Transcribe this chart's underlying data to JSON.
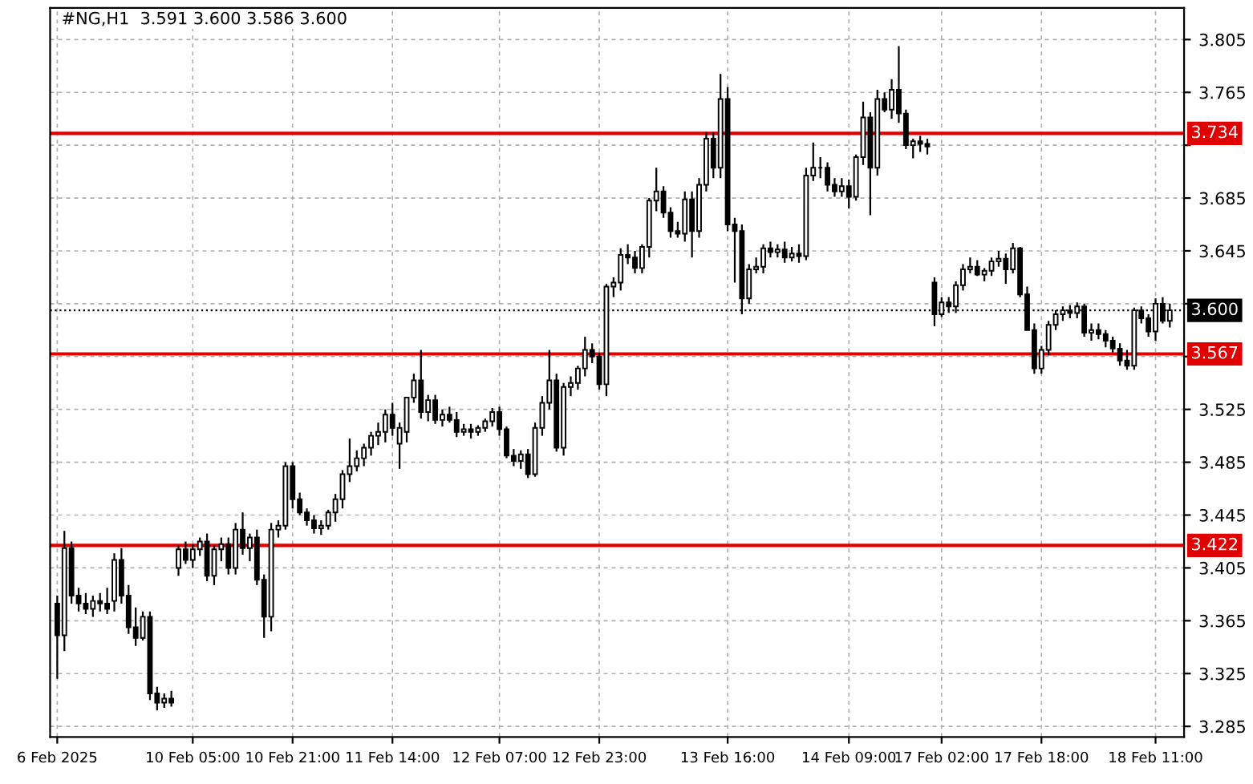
{
  "chart_data": {
    "type": "candlestick",
    "title": "#NG,H1  3.591 3.600 3.586 3.600",
    "categories": [
      "6 Feb 2025",
      null,
      null,
      null,
      null,
      null,
      null,
      null,
      null,
      null,
      null,
      null,
      null,
      null,
      null,
      null,
      null,
      null,
      null,
      "10 Feb 05:00",
      null,
      null,
      null,
      null,
      null,
      null,
      null,
      null,
      null,
      null,
      null,
      null,
      null,
      "10 Feb 21:00",
      null,
      null,
      null,
      null,
      null,
      null,
      null,
      null,
      null,
      null,
      null,
      null,
      null,
      "11 Feb 14:00",
      null,
      null,
      null,
      null,
      null,
      null,
      null,
      null,
      null,
      null,
      null,
      null,
      null,
      null,
      "12 Feb 07:00",
      null,
      null,
      null,
      null,
      null,
      null,
      null,
      null,
      null,
      null,
      null,
      null,
      null,
      "12 Feb 23:00",
      null,
      null,
      null,
      null,
      null,
      null,
      null,
      null,
      null,
      null,
      null,
      null,
      null,
      null,
      null,
      null,
      null,
      "13 Feb 16:00",
      null,
      null,
      null,
      null,
      null,
      null,
      null,
      null,
      null,
      null,
      null,
      null,
      null,
      null,
      null,
      null,
      "14 Feb 09:00",
      null,
      null,
      null,
      null,
      null,
      null,
      null,
      null,
      null,
      null,
      null,
      null,
      "17 Feb 02:00",
      null,
      null,
      null,
      null,
      null,
      null,
      null,
      null,
      null,
      null,
      null,
      null,
      null,
      "17 Feb 18:00",
      null,
      null,
      null,
      null,
      null,
      null,
      null,
      null,
      null,
      null,
      null,
      null,
      null,
      null,
      null,
      "18 Feb 11:00",
      null,
      null
    ],
    "ohlc": [
      [
        3.378,
        3.384,
        3.321,
        3.354
      ],
      [
        3.354,
        3.433,
        3.342,
        3.42
      ],
      [
        3.42,
        3.425,
        3.378,
        3.384
      ],
      [
        3.384,
        3.39,
        3.372,
        3.378
      ],
      [
        3.378,
        3.386,
        3.37,
        3.374
      ],
      [
        3.374,
        3.384,
        3.368,
        3.38
      ],
      [
        3.38,
        3.386,
        3.372,
        3.378
      ],
      [
        3.378,
        3.39,
        3.37,
        3.374
      ],
      [
        3.38,
        3.416,
        3.372,
        3.411
      ],
      [
        3.411,
        3.42,
        3.378,
        3.384
      ],
      [
        3.384,
        3.392,
        3.355,
        3.36
      ],
      [
        3.36,
        3.375,
        3.346,
        3.352
      ],
      [
        3.352,
        3.372,
        3.35,
        3.368
      ],
      [
        3.368,
        3.372,
        3.305,
        3.31
      ],
      [
        3.31,
        3.315,
        3.297,
        3.303
      ],
      [
        3.303,
        3.31,
        3.299,
        3.306
      ],
      [
        3.306,
        3.312,
        3.3,
        3.303
      ],
      [
        3.405,
        3.422,
        3.399,
        3.419
      ],
      [
        3.419,
        3.425,
        3.408,
        3.411
      ],
      [
        3.411,
        3.423,
        3.405,
        3.419
      ],
      [
        3.419,
        3.428,
        3.414,
        3.425
      ],
      [
        3.425,
        3.431,
        3.395,
        3.399
      ],
      [
        3.399,
        3.422,
        3.392,
        3.419
      ],
      [
        3.419,
        3.428,
        3.41,
        3.423
      ],
      [
        3.423,
        3.428,
        3.4,
        3.405
      ],
      [
        3.405,
        3.439,
        3.4,
        3.434
      ],
      [
        3.434,
        3.447,
        3.415,
        3.42
      ],
      [
        3.42,
        3.431,
        3.41,
        3.428
      ],
      [
        3.428,
        3.434,
        3.392,
        3.396
      ],
      [
        3.396,
        3.4,
        3.352,
        3.368
      ],
      [
        3.368,
        3.439,
        3.357,
        3.434
      ],
      [
        3.434,
        3.441,
        3.428,
        3.437
      ],
      [
        3.437,
        3.485,
        3.434,
        3.482
      ],
      [
        3.482,
        3.485,
        3.45,
        3.457
      ],
      [
        3.457,
        3.462,
        3.445,
        3.447
      ],
      [
        3.447,
        3.45,
        3.437,
        3.441
      ],
      [
        3.441,
        3.445,
        3.431,
        3.435
      ],
      [
        3.435,
        3.441,
        3.43,
        3.437
      ],
      [
        3.437,
        3.449,
        3.434,
        3.447
      ],
      [
        3.447,
        3.461,
        3.44,
        3.457
      ],
      [
        3.457,
        3.479,
        3.45,
        3.476
      ],
      [
        3.476,
        3.503,
        3.47,
        3.482
      ],
      [
        3.482,
        3.494,
        3.478,
        3.488
      ],
      [
        3.488,
        3.499,
        3.482,
        3.496
      ],
      [
        3.496,
        3.508,
        3.49,
        3.505
      ],
      [
        3.505,
        3.515,
        3.498,
        3.508
      ],
      [
        3.508,
        3.525,
        3.5,
        3.521
      ],
      [
        3.521,
        3.53,
        3.505,
        3.511
      ],
      [
        3.499,
        3.515,
        3.48,
        3.511
      ],
      [
        3.508,
        3.534,
        3.5,
        3.534
      ],
      [
        3.534,
        3.552,
        3.53,
        3.547
      ],
      [
        3.547,
        3.57,
        3.518,
        3.523
      ],
      [
        3.523,
        3.536,
        3.516,
        3.532
      ],
      [
        3.532,
        3.536,
        3.514,
        3.517
      ],
      [
        3.517,
        3.525,
        3.512,
        3.521
      ],
      [
        3.521,
        3.527,
        3.515,
        3.517
      ],
      [
        3.517,
        3.523,
        3.504,
        3.508
      ],
      [
        3.508,
        3.514,
        3.505,
        3.51
      ],
      [
        3.51,
        3.514,
        3.503,
        3.508
      ],
      [
        3.508,
        3.513,
        3.505,
        3.511
      ],
      [
        3.511,
        3.518,
        3.508,
        3.516
      ],
      [
        3.516,
        3.526,
        3.512,
        3.523
      ],
      [
        3.523,
        3.527,
        3.505,
        3.51
      ],
      [
        3.51,
        3.512,
        3.488,
        3.49
      ],
      [
        3.49,
        3.495,
        3.482,
        3.486
      ],
      [
        3.486,
        3.494,
        3.48,
        3.491
      ],
      [
        3.491,
        3.495,
        3.473,
        3.476
      ],
      [
        3.476,
        3.515,
        3.474,
        3.511
      ],
      [
        3.511,
        3.535,
        3.505,
        3.53
      ],
      [
        3.53,
        3.57,
        3.525,
        3.547
      ],
      [
        3.547,
        3.552,
        3.493,
        3.496
      ],
      [
        3.496,
        3.545,
        3.49,
        3.542
      ],
      [
        3.542,
        3.55,
        3.535,
        3.545
      ],
      [
        3.545,
        3.558,
        3.54,
        3.556
      ],
      [
        3.556,
        3.58,
        3.55,
        3.57
      ],
      [
        3.57,
        3.575,
        3.56,
        3.565
      ],
      [
        3.565,
        3.568,
        3.54,
        3.544
      ],
      [
        3.544,
        3.62,
        3.535,
        3.618
      ],
      [
        3.618,
        3.625,
        3.61,
        3.621
      ],
      [
        3.621,
        3.647,
        3.615,
        3.642
      ],
      [
        3.642,
        3.65,
        3.635,
        3.64
      ],
      [
        3.64,
        3.645,
        3.628,
        3.632
      ],
      [
        3.632,
        3.65,
        3.628,
        3.648
      ],
      [
        3.648,
        3.685,
        3.64,
        3.683
      ],
      [
        3.683,
        3.708,
        3.675,
        3.69
      ],
      [
        3.69,
        3.694,
        3.67,
        3.674
      ],
      [
        3.674,
        3.678,
        3.655,
        3.66
      ],
      [
        3.66,
        3.667,
        3.655,
        3.658
      ],
      [
        3.658,
        3.69,
        3.652,
        3.684
      ],
      [
        3.684,
        3.69,
        3.64,
        3.66
      ],
      [
        3.66,
        3.7,
        3.655,
        3.695
      ],
      [
        3.695,
        3.735,
        3.69,
        3.73
      ],
      [
        3.73,
        3.735,
        3.7,
        3.708
      ],
      [
        3.708,
        3.779,
        3.7,
        3.76
      ],
      [
        3.76,
        3.769,
        3.66,
        3.665
      ],
      [
        3.665,
        3.67,
        3.621,
        3.66
      ],
      [
        3.66,
        3.665,
        3.597,
        3.609
      ],
      [
        3.609,
        3.635,
        3.605,
        3.631
      ],
      [
        3.631,
        3.64,
        3.628,
        3.633
      ],
      [
        3.633,
        3.65,
        3.628,
        3.647
      ],
      [
        3.647,
        3.652,
        3.64,
        3.644
      ],
      [
        3.644,
        3.65,
        3.64,
        3.646
      ],
      [
        3.646,
        3.652,
        3.636,
        3.64
      ],
      [
        3.64,
        3.648,
        3.637,
        3.643
      ],
      [
        3.643,
        3.65,
        3.636,
        3.641
      ],
      [
        3.641,
        3.708,
        3.638,
        3.702
      ],
      [
        3.702,
        3.727,
        3.698,
        3.708
      ],
      [
        3.708,
        3.716,
        3.7,
        3.708
      ],
      [
        3.708,
        3.712,
        3.69,
        3.695
      ],
      [
        3.695,
        3.7,
        3.686,
        3.69
      ],
      [
        3.69,
        3.7,
        3.686,
        3.694
      ],
      [
        3.694,
        3.699,
        3.677,
        3.686
      ],
      [
        3.686,
        3.718,
        3.683,
        3.716
      ],
      [
        3.716,
        3.758,
        3.71,
        3.746
      ],
      [
        3.746,
        3.75,
        3.672,
        3.708
      ],
      [
        3.708,
        3.767,
        3.702,
        3.76
      ],
      [
        3.76,
        3.765,
        3.75,
        3.752
      ],
      [
        3.752,
        3.775,
        3.745,
        3.767
      ],
      [
        3.767,
        3.8,
        3.742,
        3.749
      ],
      [
        3.749,
        3.752,
        3.722,
        3.725
      ],
      [
        3.725,
        3.73,
        3.715,
        3.728
      ],
      [
        3.728,
        3.732,
        3.72,
        3.726
      ],
      [
        3.726,
        3.73,
        3.718,
        3.724
      ],
      [
        3.621,
        3.625,
        3.588,
        3.597
      ],
      [
        3.597,
        3.61,
        3.595,
        3.606
      ],
      [
        3.606,
        3.61,
        3.598,
        3.603
      ],
      [
        3.603,
        3.622,
        3.598,
        3.619
      ],
      [
        3.619,
        3.635,
        3.615,
        3.631
      ],
      [
        3.631,
        3.64,
        3.628,
        3.633
      ],
      [
        3.633,
        3.638,
        3.626,
        3.627
      ],
      [
        3.627,
        3.632,
        3.622,
        3.63
      ],
      [
        3.63,
        3.64,
        3.626,
        3.637
      ],
      [
        3.637,
        3.645,
        3.633,
        3.639
      ],
      [
        3.639,
        3.643,
        3.62,
        3.631
      ],
      [
        3.631,
        3.651,
        3.628,
        3.647
      ],
      [
        3.647,
        3.648,
        3.61,
        3.612
      ],
      [
        3.612,
        3.618,
        3.585,
        3.585
      ],
      [
        3.585,
        3.59,
        3.552,
        3.556
      ],
      [
        3.556,
        3.573,
        3.552,
        3.57
      ],
      [
        3.57,
        3.592,
        3.566,
        3.589
      ],
      [
        3.589,
        3.6,
        3.585,
        3.597
      ],
      [
        3.597,
        3.603,
        3.592,
        3.6
      ],
      [
        3.6,
        3.604,
        3.594,
        3.598
      ],
      [
        3.598,
        3.606,
        3.594,
        3.603
      ],
      [
        3.603,
        3.605,
        3.58,
        3.583
      ],
      [
        3.583,
        3.59,
        3.577,
        3.585
      ],
      [
        3.585,
        3.59,
        3.578,
        3.582
      ],
      [
        3.582,
        3.585,
        3.572,
        3.577
      ],
      [
        3.577,
        3.58,
        3.568,
        3.571
      ],
      [
        3.571,
        3.575,
        3.558,
        3.562
      ],
      [
        3.562,
        3.57,
        3.555,
        3.558
      ],
      [
        3.558,
        3.602,
        3.555,
        3.6
      ],
      [
        3.6,
        3.603,
        3.59,
        3.594
      ],
      [
        3.594,
        3.597,
        3.58,
        3.584
      ],
      [
        3.584,
        3.609,
        3.577,
        3.605
      ],
      [
        3.605,
        3.61,
        3.59,
        3.592
      ],
      [
        3.592,
        3.605,
        3.587,
        3.6
      ]
    ],
    "ylim": [
      3.277,
      3.829
    ],
    "yticks": [
      3.285,
      3.325,
      3.365,
      3.405,
      3.445,
      3.485,
      3.525,
      {
        "value": 3.565,
        "label": null
      },
      {
        "value": 3.605,
        "label": null
      },
      3.645,
      3.685,
      {
        "value": 3.725,
        "label": null
      },
      3.765,
      3.805
    ],
    "grid": true,
    "ref_lines": [
      {
        "axis": "y",
        "value": 3.734,
        "label": "3.734",
        "color": "#e00000"
      },
      {
        "axis": "y",
        "value": 3.567,
        "label": "3.567",
        "color": "#e00000"
      },
      {
        "axis": "y",
        "value": 3.422,
        "label": "3.422",
        "color": "#e00000"
      },
      {
        "axis": "y",
        "value": 3.6,
        "label": "3.600",
        "color": "#000000",
        "line_style": "dotted"
      }
    ]
  }
}
